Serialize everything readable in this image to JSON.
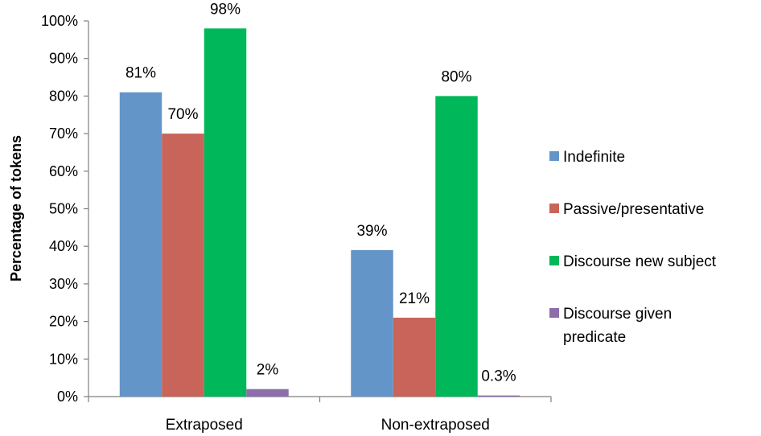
{
  "chart_data": {
    "type": "bar",
    "ylabel": "Percentage of tokens",
    "xlabel": "",
    "ylim": [
      0,
      100
    ],
    "y_ticks": [
      "0%",
      "10%",
      "20%",
      "30%",
      "40%",
      "50%",
      "60%",
      "70%",
      "80%",
      "90%",
      "100%"
    ],
    "grid": false,
    "legend_position": "right",
    "categories": [
      "Extraposed",
      "Non-extraposed"
    ],
    "series": [
      {
        "name": "Indefinite",
        "color": "#6495c8",
        "values": [
          81,
          39
        ],
        "labels": [
          "81%",
          "39%"
        ]
      },
      {
        "name": "Passive/presentative",
        "color": "#c8645a",
        "values": [
          70,
          21
        ],
        "labels": [
          "70%",
          "21%"
        ]
      },
      {
        "name": "Discourse new subject",
        "color": "#00b85a",
        "values": [
          98,
          80
        ],
        "labels": [
          "98%",
          "80%"
        ]
      },
      {
        "name": "Discourse given predicate",
        "legend_lines": [
          "Discourse given",
          "predicate"
        ],
        "color": "#8c6eaa",
        "values": [
          2,
          0.3
        ],
        "labels": [
          "2%",
          "0.3%"
        ]
      }
    ]
  }
}
